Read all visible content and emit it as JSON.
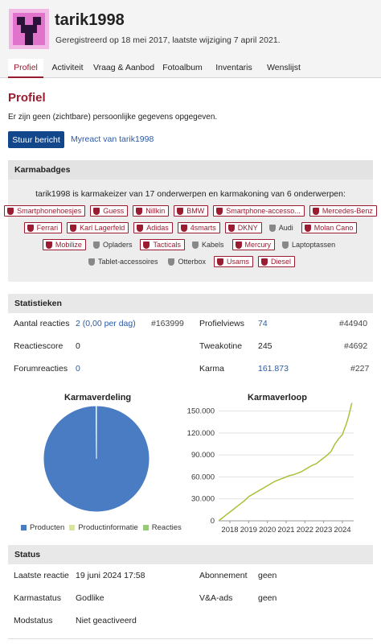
{
  "profile": {
    "username": "tarik1998",
    "registered": "Geregistreerd op 18 mei 2017, laatste wijziging 7 april 2021."
  },
  "tabs": [
    {
      "label": "Profiel",
      "active": true
    },
    {
      "label": "Activiteit"
    },
    {
      "label": "Vraag & Aanbod"
    },
    {
      "label": "Fotoalbum"
    },
    {
      "label": "Inventaris"
    },
    {
      "label": "Wenslijst"
    }
  ],
  "main": {
    "title": "Profiel",
    "no_info": "Er zijn geen (zichtbare) persoonlijke gegevens opgegeven.",
    "send_message": "Stuur bericht",
    "myreact": "Myreact van tarik1998"
  },
  "karmabadges": {
    "heading": "Karmabadges",
    "summary": "tarik1998 is karmakeizer van 17 onderwerpen en karmakoning van 6 onderwerpen:",
    "rows": [
      [
        {
          "label": "Smartphonehoesjes",
          "keizer": true
        },
        {
          "label": "Guess",
          "keizer": true
        },
        {
          "label": "Nillkin",
          "keizer": true
        },
        {
          "label": "BMW",
          "keizer": true
        },
        {
          "label": "Smartphone-accesso...",
          "keizer": true
        },
        {
          "label": "Mercedes-Benz",
          "keizer": true
        }
      ],
      [
        {
          "label": "Ferrari",
          "keizer": true
        },
        {
          "label": "Karl Lagerfeld",
          "keizer": true
        },
        {
          "label": "Adidas",
          "keizer": true
        },
        {
          "label": "4smarts",
          "keizer": true
        },
        {
          "label": "DKNY",
          "keizer": true
        },
        {
          "label": "Audi",
          "keizer": false
        },
        {
          "label": "Molan Cano",
          "keizer": true
        }
      ],
      [
        {
          "label": "Mobilize",
          "keizer": true
        },
        {
          "label": "Opladers",
          "keizer": false
        },
        {
          "label": "Tacticals",
          "keizer": true
        },
        {
          "label": "Kabels",
          "keizer": false
        },
        {
          "label": "Mercury",
          "keizer": true
        },
        {
          "label": "Laptoptassen",
          "keizer": false
        }
      ],
      [
        {
          "label": "Tablet-accessoires",
          "keizer": false
        },
        {
          "label": "Otterbox",
          "keizer": false
        },
        {
          "label": "Usams",
          "keizer": true
        },
        {
          "label": "Diesel",
          "keizer": true
        }
      ]
    ]
  },
  "stats": {
    "heading": "Statistieken",
    "left": [
      {
        "label": "Aantal reacties",
        "value": "2 (0,00 per dag)",
        "rank": "#163999",
        "link": true
      },
      {
        "label": "Reactiescore",
        "value": "0",
        "rank": "",
        "link": false
      },
      {
        "label": "Forumreacties",
        "value": "0",
        "rank": "",
        "link": true
      }
    ],
    "right": [
      {
        "label": "Profielviews",
        "value": "74",
        "rank": "#44940",
        "link": true
      },
      {
        "label": "Tweakotine",
        "value": "245",
        "rank": "#4692",
        "link": false
      },
      {
        "label": "Karma",
        "value": "161.873",
        "rank": "#227",
        "link": true
      }
    ]
  },
  "chart_data": [
    {
      "type": "pie",
      "title": "Karmaverdeling",
      "labels": [
        "Producten",
        "Productinformatie",
        "Reacties"
      ],
      "values": [
        99.9,
        0.05,
        0.05
      ],
      "colors": [
        "#4a7cc4",
        "#d7e4a4",
        "#9bc97a"
      ],
      "legend": "bottom"
    },
    {
      "type": "line",
      "title": "Karmaverloop",
      "x_ticks": [
        "2018",
        "2019",
        "2020",
        "2021",
        "2022",
        "2023",
        "2024"
      ],
      "y_ticks": [
        "0",
        "30.000",
        "60.000",
        "90.000",
        "120.000",
        "150.000"
      ],
      "ylim": [
        0,
        165000
      ],
      "xlim": [
        2017.4,
        2024.6
      ],
      "color": "#a7c23a",
      "x": [
        2017.42,
        2017.6,
        2017.8,
        2018.0,
        2018.2,
        2018.4,
        2018.6,
        2018.8,
        2019.0,
        2019.2,
        2019.4,
        2019.6,
        2019.8,
        2020.0,
        2020.2,
        2020.4,
        2020.6,
        2020.8,
        2021.0,
        2021.2,
        2021.4,
        2021.6,
        2021.8,
        2022.0,
        2022.2,
        2022.4,
        2022.6,
        2022.8,
        2023.0,
        2023.2,
        2023.4,
        2023.5,
        2023.6,
        2023.8,
        2024.0,
        2024.1,
        2024.2,
        2024.3,
        2024.4,
        2024.5
      ],
      "y": [
        500,
        4000,
        8000,
        12000,
        16000,
        20000,
        24000,
        28000,
        33000,
        36000,
        39000,
        42000,
        45000,
        48000,
        51000,
        54000,
        56000,
        58000,
        60000,
        62000,
        63000,
        65000,
        67000,
        70000,
        73000,
        76000,
        78000,
        82000,
        86000,
        90000,
        95000,
        100000,
        105000,
        112000,
        118000,
        125000,
        132000,
        140000,
        150000,
        161000
      ]
    }
  ],
  "status": {
    "heading": "Status",
    "left": [
      {
        "label": "Laatste reactie",
        "value": "19 juni 2024 17:58"
      },
      {
        "label": "Karmastatus",
        "value": "Godlike"
      },
      {
        "label": "Modstatus",
        "value": "Niet geactiveerd"
      }
    ],
    "right": [
      {
        "label": "Abonnement",
        "value": "geen"
      },
      {
        "label": "V&A-ads",
        "value": "geen"
      }
    ]
  }
}
